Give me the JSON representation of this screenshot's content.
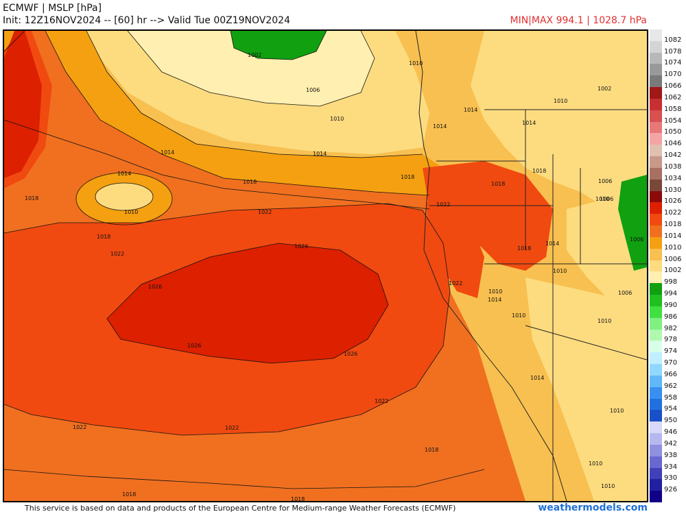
{
  "header": {
    "title": "ECMWF | MSLP [hPa]",
    "subtitle": "Init: 12Z16NOV2024 -- [60] hr --> Valid Tue 00Z19NOV2024",
    "minmax": "MIN|MAX 994.1 | 1028.7 hPa"
  },
  "footer": {
    "attribution": "This service is based on data and products of the European Centre for Medium-range Weather Forecasts (ECMWF)",
    "brand": "weathermodels.com"
  },
  "colorbar": {
    "labels": [
      "1082",
      "1078",
      "1074",
      "1070",
      "1066",
      "1062",
      "1058",
      "1054",
      "1050",
      "1046",
      "1042",
      "1038",
      "1034",
      "1030",
      "1026",
      "1022",
      "1018",
      "1014",
      "1010",
      "1006",
      "1002",
      "998",
      "994",
      "990",
      "986",
      "982",
      "978",
      "974",
      "970",
      "966",
      "962",
      "958",
      "954",
      "950",
      "946",
      "942",
      "938",
      "934",
      "930",
      "926"
    ],
    "colors": [
      "#e8e8e8",
      "#d4d4d4",
      "#b8b8b8",
      "#999999",
      "#7a7a7a",
      "#a01818",
      "#c83030",
      "#d85050",
      "#e87878",
      "#f4a4a4",
      "#e0c0b0",
      "#c89888",
      "#a87060",
      "#7a4838",
      "#8c0a0a",
      "#dd2000",
      "#f04a10",
      "#f07020",
      "#f5a010",
      "#f8c050",
      "#fddc80",
      "#ffefb0",
      "#10a010",
      "#20c020",
      "#40e040",
      "#80f080",
      "#b0f8b0",
      "#d8ffe8",
      "#c0f0ff",
      "#90d8ff",
      "#60b8f8",
      "#3890f0",
      "#2070e0",
      "#1850c8",
      "#d8d8f8",
      "#b8b8f0",
      "#9090e0",
      "#6868d0",
      "#4040b8",
      "#2020a0",
      "#100088"
    ]
  },
  "contour_labels": [
    "1002",
    "1006",
    "1010",
    "1014",
    "1018",
    "1022",
    "1026"
  ],
  "map_labels": [
    {
      "text": "1002"
    },
    {
      "text": "1006"
    },
    {
      "text": "1010"
    },
    {
      "text": "1014"
    },
    {
      "text": "1014"
    },
    {
      "text": "1014"
    },
    {
      "text": "1010"
    },
    {
      "text": "1018"
    },
    {
      "text": "1018"
    },
    {
      "text": "1018"
    },
    {
      "text": "1018"
    },
    {
      "text": "1022"
    },
    {
      "text": "1022"
    },
    {
      "text": "1026"
    },
    {
      "text": "1026"
    },
    {
      "text": "1026"
    },
    {
      "text": "1026"
    },
    {
      "text": "1022"
    },
    {
      "text": "1022"
    },
    {
      "text": "1022"
    },
    {
      "text": "1018"
    },
    {
      "text": "1018"
    },
    {
      "text": "1018"
    },
    {
      "text": "1010"
    },
    {
      "text": "1014"
    },
    {
      "text": "1014"
    },
    {
      "text": "1014"
    },
    {
      "text": "1018"
    },
    {
      "text": "1018"
    },
    {
      "text": "1022"
    },
    {
      "text": "1022"
    },
    {
      "text": "1018"
    },
    {
      "text": "1014"
    },
    {
      "text": "1010"
    },
    {
      "text": "1010"
    },
    {
      "text": "1014"
    },
    {
      "text": "1010"
    },
    {
      "text": "1010"
    },
    {
      "text": "1006"
    },
    {
      "text": "1006"
    },
    {
      "text": "1006"
    },
    {
      "text": "1002"
    },
    {
      "text": "1010"
    },
    {
      "text": "1010"
    },
    {
      "text": "1014"
    },
    {
      "text": "1010"
    },
    {
      "text": "1010"
    },
    {
      "text": "1010"
    },
    {
      "text": "1006"
    }
  ]
}
